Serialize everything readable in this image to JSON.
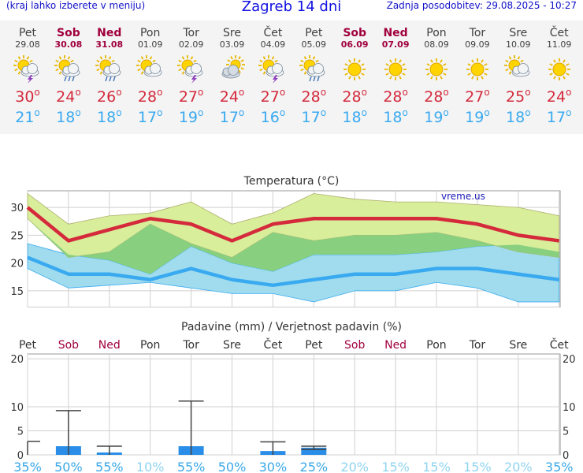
{
  "header": {
    "left_note": "(kraj lahko izberete v meniju)",
    "title": "Zagreb 14 dni",
    "updated": "Zadnja posodobitev: 29.08.2025 - 10:27"
  },
  "colors": {
    "max_line": "#d42a3c",
    "min_line": "#3aaaf0",
    "max_band": "#d8ee9a",
    "min_band": "#a0dcee",
    "overlap_band": "#88d080",
    "precip_bar": "#2a8ee8",
    "weekend": "#a0003c",
    "prob_high": "#3aa8e8",
    "prob_low": "#90d4f0"
  },
  "days": [
    {
      "name": "Pet",
      "date": "29.08",
      "weekend": false,
      "icon": "sun-cloud-lightning-icon",
      "tmax": "30",
      "tmin": "21"
    },
    {
      "name": "Sob",
      "date": "30.08",
      "weekend": true,
      "icon": "sun-cloud-rain-icon",
      "tmax": "24",
      "tmin": "18"
    },
    {
      "name": "Ned",
      "date": "31.08",
      "weekend": true,
      "icon": "sun-cloud-rain-icon",
      "tmax": "26",
      "tmin": "18"
    },
    {
      "name": "Pon",
      "date": "01.09",
      "weekend": false,
      "icon": "sun-cloud-icon",
      "tmax": "28",
      "tmin": "17"
    },
    {
      "name": "Tor",
      "date": "02.09",
      "weekend": false,
      "icon": "sun-cloud-lightning-icon",
      "tmax": "27",
      "tmin": "19"
    },
    {
      "name": "Sre",
      "date": "03.09",
      "weekend": false,
      "icon": "cloud-sun-icon",
      "tmax": "24",
      "tmin": "17"
    },
    {
      "name": "Čet",
      "date": "04.09",
      "weekend": false,
      "icon": "sun-cloud-lightning-icon",
      "tmax": "27",
      "tmin": "16"
    },
    {
      "name": "Pet",
      "date": "05.09",
      "weekend": false,
      "icon": "sun-cloud-rain-icon",
      "tmax": "28",
      "tmin": "17"
    },
    {
      "name": "Sob",
      "date": "06.09",
      "weekend": true,
      "icon": "sun-icon",
      "tmax": "28",
      "tmin": "18"
    },
    {
      "name": "Ned",
      "date": "07.09",
      "weekend": true,
      "icon": "sun-icon",
      "tmax": "28",
      "tmin": "18"
    },
    {
      "name": "Pon",
      "date": "08.09",
      "weekend": false,
      "icon": "sun-icon",
      "tmax": "28",
      "tmin": "19"
    },
    {
      "name": "Tor",
      "date": "09.09",
      "weekend": false,
      "icon": "sun-icon",
      "tmax": "27",
      "tmin": "19"
    },
    {
      "name": "Sre",
      "date": "10.09",
      "weekend": false,
      "icon": "sun-cloud-icon",
      "tmax": "25",
      "tmin": "18"
    },
    {
      "name": "Čet",
      "date": "11.09",
      "weekend": false,
      "icon": "sun-icon",
      "tmax": "24",
      "tmin": "17"
    }
  ],
  "chart_data": [
    {
      "type": "line",
      "title": "Temperatura",
      "unit": "°C",
      "watermark": "vreme.us",
      "x": [
        "29.08",
        "30.08",
        "31.08",
        "01.09",
        "02.09",
        "03.09",
        "04.09",
        "05.09",
        "06.09",
        "07.09",
        "08.09",
        "09.09",
        "10.09",
        "11.09"
      ],
      "ylim": [
        12,
        33
      ],
      "yticks": [
        15,
        20,
        25,
        30
      ],
      "grid": true,
      "series": [
        {
          "name": "max",
          "values": [
            30,
            24,
            26,
            28,
            27,
            24,
            27,
            28,
            28,
            28,
            28,
            27,
            25,
            24
          ]
        },
        {
          "name": "min",
          "values": [
            21,
            18,
            18,
            17,
            19,
            17,
            16,
            17,
            18,
            18,
            19,
            19,
            18,
            17
          ]
        }
      ],
      "bands": [
        {
          "for": "max",
          "upper": [
            32.5,
            27,
            28.5,
            29,
            31,
            27,
            29,
            32.5,
            31.5,
            31,
            31,
            30.5,
            30,
            28.5
          ],
          "lower": [
            28,
            21,
            22,
            27,
            23.5,
            21,
            25.5,
            24,
            25,
            25,
            25.5,
            24,
            22,
            21
          ]
        },
        {
          "for": "min",
          "upper": [
            23.5,
            21.5,
            20.5,
            18,
            23,
            20,
            18.5,
            21.5,
            21.5,
            21.5,
            22,
            23,
            23.3,
            22
          ],
          "lower": [
            19,
            15.5,
            16,
            16.5,
            15.5,
            14.5,
            14.5,
            13,
            15,
            15,
            16.5,
            15.5,
            13,
            13
          ]
        }
      ]
    },
    {
      "type": "bar",
      "title": "Padavine (mm) / Verjetnost padavin (%)",
      "categories": [
        "Pet",
        "Sob",
        "Ned",
        "Pon",
        "Tor",
        "Sre",
        "Čet",
        "Pet",
        "Sob",
        "Ned",
        "Pon",
        "Tor",
        "Sre",
        "Čet"
      ],
      "weekend": [
        false,
        true,
        true,
        false,
        false,
        false,
        false,
        false,
        true,
        true,
        false,
        false,
        false,
        false
      ],
      "ylim": [
        0,
        21
      ],
      "yticks": [
        0,
        5,
        10,
        20
      ],
      "grid": true,
      "values": [
        0,
        1.8,
        0.5,
        0,
        1.8,
        0,
        0.8,
        1.5,
        0,
        0,
        0,
        0,
        0,
        0
      ],
      "error_max": [
        2.8,
        9.2,
        1.8,
        0,
        11.2,
        0,
        2.7,
        1.8,
        0,
        0,
        0,
        0,
        0,
        0
      ],
      "error_min": [
        0,
        0,
        0,
        0,
        0,
        0,
        0,
        1.1,
        0,
        0,
        0,
        0,
        0,
        0
      ],
      "probability": [
        "35%",
        "50%",
        "55%",
        "10%",
        "55%",
        "50%",
        "30%",
        "25%",
        "20%",
        "15%",
        "15%",
        "15%",
        "20%",
        "35%"
      ],
      "probability_values": [
        35,
        50,
        55,
        10,
        55,
        50,
        30,
        25,
        20,
        15,
        15,
        15,
        20,
        35
      ]
    }
  ]
}
